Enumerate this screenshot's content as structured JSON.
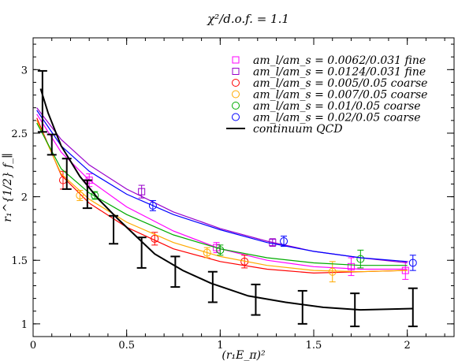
{
  "chart_data": {
    "type": "scatter",
    "title": "χ²/d.o.f. = 1.1",
    "xlabel": "(r₁E_π)²",
    "ylabel": "r₁^{1/2} f_∥",
    "xlim": [
      0,
      2.25
    ],
    "ylim": [
      0.9,
      3.25
    ],
    "xticks": [
      0,
      0.5,
      1,
      1.5,
      2
    ],
    "xtick_labels": [
      "0",
      "0.5",
      "1",
      "1.5",
      "2"
    ],
    "yticks": [
      1,
      1.5,
      2,
      2.5,
      3
    ],
    "ytick_labels": [
      "1",
      "1.5",
      "2",
      "2.5",
      "3"
    ],
    "grid": false,
    "legend_position": "top-right",
    "series": [
      {
        "name": "am_l/am_s = 0.0062/0.031 fine",
        "color": "#ff00ff",
        "marker": "square",
        "points": [
          {
            "x": 0.3,
            "y": 2.13,
            "err": 0.05
          },
          {
            "x": 0.98,
            "y": 1.6,
            "err": 0.04
          },
          {
            "x": 1.7,
            "y": 1.45,
            "err": 0.07
          },
          {
            "x": 1.99,
            "y": 1.42,
            "err": 0.07
          }
        ],
        "fit": [
          [
            0.02,
            2.65
          ],
          [
            0.15,
            2.35
          ],
          [
            0.3,
            2.13
          ],
          [
            0.5,
            1.92
          ],
          [
            0.75,
            1.73
          ],
          [
            1.0,
            1.59
          ],
          [
            1.25,
            1.5
          ],
          [
            1.5,
            1.45
          ],
          [
            1.75,
            1.43
          ],
          [
            2.0,
            1.43
          ]
        ]
      },
      {
        "name": "am_l/am_s = 0.0124/0.031 fine",
        "color": "#9900cc",
        "marker": "square",
        "points": [
          {
            "x": 0.58,
            "y": 2.04,
            "err": 0.05
          },
          {
            "x": 1.28,
            "y": 1.64,
            "err": 0.03
          }
        ],
        "fit": [
          [
            0.02,
            2.7
          ],
          [
            0.15,
            2.45
          ],
          [
            0.3,
            2.25
          ],
          [
            0.5,
            2.06
          ],
          [
            0.75,
            1.88
          ],
          [
            1.0,
            1.75
          ],
          [
            1.25,
            1.65
          ],
          [
            1.5,
            1.57
          ],
          [
            1.75,
            1.52
          ],
          [
            2.0,
            1.48
          ]
        ]
      },
      {
        "name": "am_l/am_s = 0.005/0.05 coarse",
        "color": "#ff0000",
        "marker": "circle",
        "points": [
          {
            "x": 0.16,
            "y": 2.13,
            "err": 0.07
          },
          {
            "x": 0.65,
            "y": 1.67,
            "err": 0.05
          },
          {
            "x": 1.13,
            "y": 1.49,
            "err": 0.05
          }
        ],
        "fit": [
          [
            0.02,
            2.62
          ],
          [
            0.15,
            2.17
          ],
          [
            0.3,
            1.95
          ],
          [
            0.5,
            1.76
          ],
          [
            0.75,
            1.59
          ],
          [
            1.0,
            1.49
          ],
          [
            1.25,
            1.43
          ],
          [
            1.5,
            1.4
          ],
          [
            1.75,
            1.41
          ],
          [
            2.0,
            1.42
          ]
        ]
      },
      {
        "name": "am_l/am_s = 0.007/0.05 coarse",
        "color": "#ffaa00",
        "marker": "circle",
        "points": [
          {
            "x": 0.25,
            "y": 2.01,
            "err": 0.04
          },
          {
            "x": 0.93,
            "y": 1.56,
            "err": 0.04
          },
          {
            "x": 1.6,
            "y": 1.41,
            "err": 0.08
          }
        ],
        "fit": [
          [
            0.02,
            2.6
          ],
          [
            0.15,
            2.18
          ],
          [
            0.3,
            1.98
          ],
          [
            0.5,
            1.8
          ],
          [
            0.75,
            1.64
          ],
          [
            1.0,
            1.53
          ],
          [
            1.25,
            1.46
          ],
          [
            1.5,
            1.42
          ],
          [
            1.75,
            1.41
          ],
          [
            2.0,
            1.42
          ]
        ]
      },
      {
        "name": "am_l/am_s = 0.01/0.05 coarse",
        "color": "#00aa00",
        "marker": "circle",
        "points": [
          {
            "x": 0.33,
            "y": 2.01,
            "err": 0.03
          },
          {
            "x": 1.0,
            "y": 1.58,
            "err": 0.04
          },
          {
            "x": 1.75,
            "y": 1.51,
            "err": 0.07
          }
        ],
        "fit": [
          [
            0.02,
            2.58
          ],
          [
            0.15,
            2.22
          ],
          [
            0.3,
            2.03
          ],
          [
            0.5,
            1.86
          ],
          [
            0.75,
            1.7
          ],
          [
            1.0,
            1.59
          ],
          [
            1.25,
            1.52
          ],
          [
            1.5,
            1.48
          ],
          [
            1.75,
            1.46
          ],
          [
            2.0,
            1.46
          ]
        ]
      },
      {
        "name": "am_l/am_s = 0.02/0.05 coarse",
        "color": "#0000ff",
        "marker": "circle",
        "points": [
          {
            "x": 0.64,
            "y": 1.93,
            "err": 0.04
          },
          {
            "x": 1.34,
            "y": 1.65,
            "err": 0.04
          },
          {
            "x": 2.03,
            "y": 1.48,
            "err": 0.06
          }
        ],
        "fit": [
          [
            0.02,
            2.68
          ],
          [
            0.15,
            2.4
          ],
          [
            0.3,
            2.2
          ],
          [
            0.5,
            2.02
          ],
          [
            0.75,
            1.86
          ],
          [
            1.0,
            1.74
          ],
          [
            1.25,
            1.64
          ],
          [
            1.5,
            1.57
          ],
          [
            1.75,
            1.52
          ],
          [
            2.0,
            1.49
          ]
        ]
      },
      {
        "name": "continuum QCD",
        "color": "#000000",
        "marker": "none",
        "line": [
          [
            0.04,
            2.85
          ],
          [
            0.08,
            2.66
          ],
          [
            0.15,
            2.4
          ],
          [
            0.25,
            2.16
          ],
          [
            0.35,
            1.98
          ],
          [
            0.45,
            1.83
          ],
          [
            0.55,
            1.69
          ],
          [
            0.65,
            1.55
          ],
          [
            0.8,
            1.42
          ],
          [
            0.95,
            1.32
          ],
          [
            1.15,
            1.22
          ],
          [
            1.35,
            1.17
          ],
          [
            1.55,
            1.13
          ],
          [
            1.75,
            1.11
          ],
          [
            2.03,
            1.12
          ]
        ],
        "error_bars": [
          {
            "x": 0.05,
            "y": 2.75,
            "err": 0.24
          },
          {
            "x": 0.1,
            "y": 2.41,
            "err": 0.08
          },
          {
            "x": 0.18,
            "y": 2.18,
            "err": 0.12
          },
          {
            "x": 0.29,
            "y": 2.02,
            "err": 0.11
          },
          {
            "x": 0.43,
            "y": 1.74,
            "err": 0.11
          },
          {
            "x": 0.58,
            "y": 1.56,
            "err": 0.12
          },
          {
            "x": 0.76,
            "y": 1.41,
            "err": 0.12
          },
          {
            "x": 0.96,
            "y": 1.29,
            "err": 0.12
          },
          {
            "x": 1.19,
            "y": 1.19,
            "err": 0.12
          },
          {
            "x": 1.44,
            "y": 1.13,
            "err": 0.13
          },
          {
            "x": 1.72,
            "y": 1.11,
            "err": 0.13
          },
          {
            "x": 2.03,
            "y": 1.13,
            "err": 0.15
          }
        ]
      }
    ]
  }
}
